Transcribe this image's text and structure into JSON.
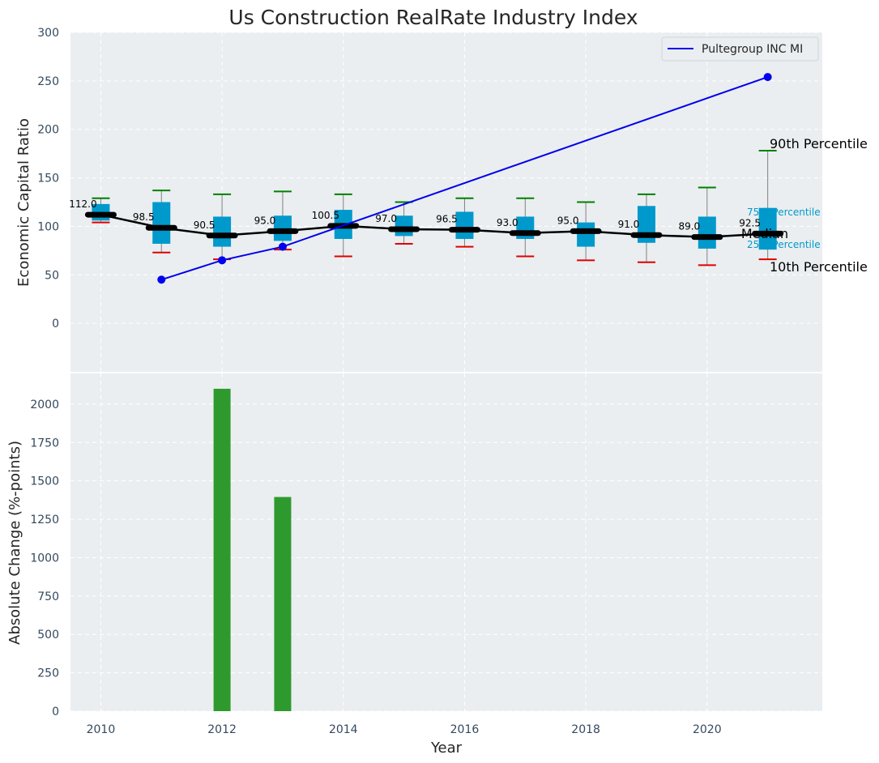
{
  "title": "Us Construction RealRate Industry Index",
  "colors": {
    "panel_bg": "#eaeef0",
    "grid": "#ffffff",
    "box_fill": "#0099cc",
    "whisker": "#808080",
    "p90_cap": "#008000",
    "p10_cap": "#e00000",
    "median_line": "#000000",
    "company_line": "#0000ee",
    "bar": "#2e9a2e"
  },
  "chart_data": [
    {
      "type": "box",
      "ylabel": "Economic Capital Ratio",
      "ylim": [
        -50,
        300
      ],
      "yticks": [
        "0",
        "50",
        "100",
        "150",
        "200",
        "250",
        "300"
      ],
      "grid": true,
      "legend_position": "top-right",
      "x": [
        2010,
        2011,
        2012,
        2013,
        2014,
        2015,
        2016,
        2017,
        2018,
        2019,
        2020,
        2021
      ],
      "median": [
        112.0,
        98.5,
        90.5,
        95.0,
        100.5,
        97.0,
        96.5,
        93.0,
        95.0,
        91.0,
        89.0,
        92.5
      ],
      "median_labels": [
        "112.0",
        "98.5",
        "90.5",
        "95.0",
        "100.5",
        "97.0",
        "96.5",
        "93.0",
        "95.0",
        "91.0",
        "89.0",
        "92.5"
      ],
      "q1": [
        106,
        82,
        79,
        85,
        87,
        90,
        87,
        87,
        79,
        83,
        77,
        76
      ],
      "q3": [
        123,
        125,
        110,
        111,
        117,
        111,
        115,
        110,
        104,
        121,
        110,
        119
      ],
      "p10": [
        104,
        73,
        66,
        76,
        69,
        82,
        79,
        69,
        65,
        63,
        60,
        66
      ],
      "p90": [
        129,
        137,
        133,
        136,
        133,
        125,
        129,
        129,
        125,
        133,
        140,
        178
      ],
      "series": [
        {
          "name": "Pultegroup INC MI",
          "x": [
            2011,
            2012,
            2013,
            2021
          ],
          "values": [
            45,
            65,
            79,
            254
          ]
        }
      ],
      "annotations": {
        "p90": "90th Percentile",
        "p75": "75th Percentile",
        "median": "Median",
        "p25": "25th Percentile",
        "p10": "10th Percentile"
      }
    },
    {
      "type": "bar",
      "xlabel": "Year",
      "ylabel": "Absolute Change (%-points)",
      "ylim": [
        0,
        2200
      ],
      "yticks": [
        "0",
        "250",
        "500",
        "750",
        "1000",
        "1250",
        "1500",
        "1750",
        "2000"
      ],
      "xticks": [
        "2010",
        "2012",
        "2014",
        "2016",
        "2018",
        "2020"
      ],
      "grid": true,
      "x": [
        2012,
        2013
      ],
      "values": [
        2100,
        1395
      ]
    }
  ]
}
